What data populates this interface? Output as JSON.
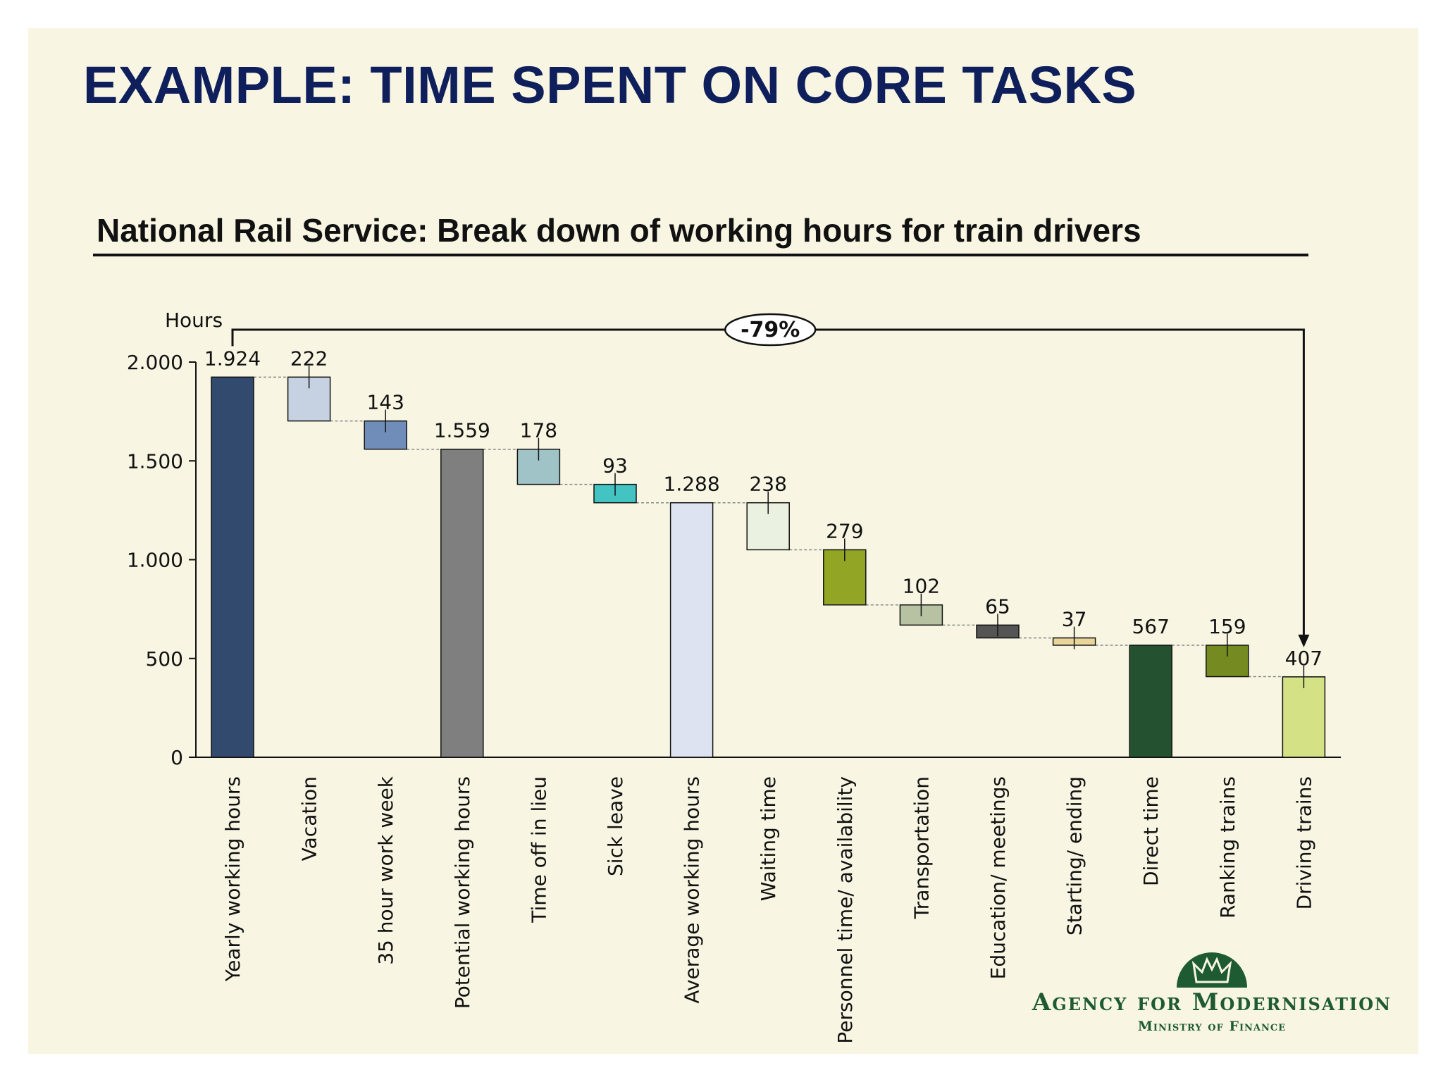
{
  "slide": {
    "title": "EXAMPLE: TIME SPENT ON CORE TASKS"
  },
  "chart_data": {
    "type": "waterfall",
    "title": "National Rail Service: Break down of working hours for train drivers",
    "ylabel": "Hours",
    "ylim": [
      0,
      2000
    ],
    "yticks": [
      0,
      500,
      1000,
      1500,
      2000
    ],
    "ytick_labels": [
      "0",
      "500",
      "1.000",
      "1.500",
      "2.000"
    ],
    "annotation": "-79%",
    "categories": [
      "Yearly working hours",
      "Vacation",
      "35 hour work week",
      "Potential working hours",
      "Time off in lieu",
      "Sick leave",
      "Average working hours",
      "Waiting time",
      "Personnel time/ availability",
      "Transportation",
      "Education/ meetings",
      "Starting/ ending",
      "Direct time",
      "Ranking trains",
      "Driving trains"
    ],
    "bars": [
      {
        "kind": "total",
        "value": 1924,
        "label": "1.924",
        "color": "#324a6e"
      },
      {
        "kind": "decrease",
        "value": 222,
        "label": "222",
        "color": "#c6d2e2"
      },
      {
        "kind": "decrease",
        "value": 143,
        "label": "143",
        "color": "#6f8db8"
      },
      {
        "kind": "total",
        "value": 1559,
        "label": "1.559",
        "color": "#7f7f7f"
      },
      {
        "kind": "decrease",
        "value": 178,
        "label": "178",
        "color": "#9fc3c6"
      },
      {
        "kind": "decrease",
        "value": 93,
        "label": "93",
        "color": "#43c4c2"
      },
      {
        "kind": "total",
        "value": 1288,
        "label": "1.288",
        "color": "#dde3f0"
      },
      {
        "kind": "decrease",
        "value": 238,
        "label": "238",
        "color": "#ebf1e0"
      },
      {
        "kind": "decrease",
        "value": 279,
        "label": "279",
        "color": "#93a524"
      },
      {
        "kind": "decrease",
        "value": 102,
        "label": "102",
        "color": "#b7c2a2"
      },
      {
        "kind": "decrease",
        "value": 65,
        "label": "65",
        "color": "#555555"
      },
      {
        "kind": "decrease",
        "value": 37,
        "label": "37",
        "color": "#e9d49c"
      },
      {
        "kind": "total",
        "value": 567,
        "label": "567",
        "color": "#245231"
      },
      {
        "kind": "decrease",
        "value": 159,
        "label": "159",
        "color": "#758b22"
      },
      {
        "kind": "total",
        "value": 407,
        "label": "407",
        "color": "#d4e285"
      }
    ]
  },
  "logo": {
    "name": "Agency for Modernisation",
    "subtitle": "Ministry of Finance"
  }
}
